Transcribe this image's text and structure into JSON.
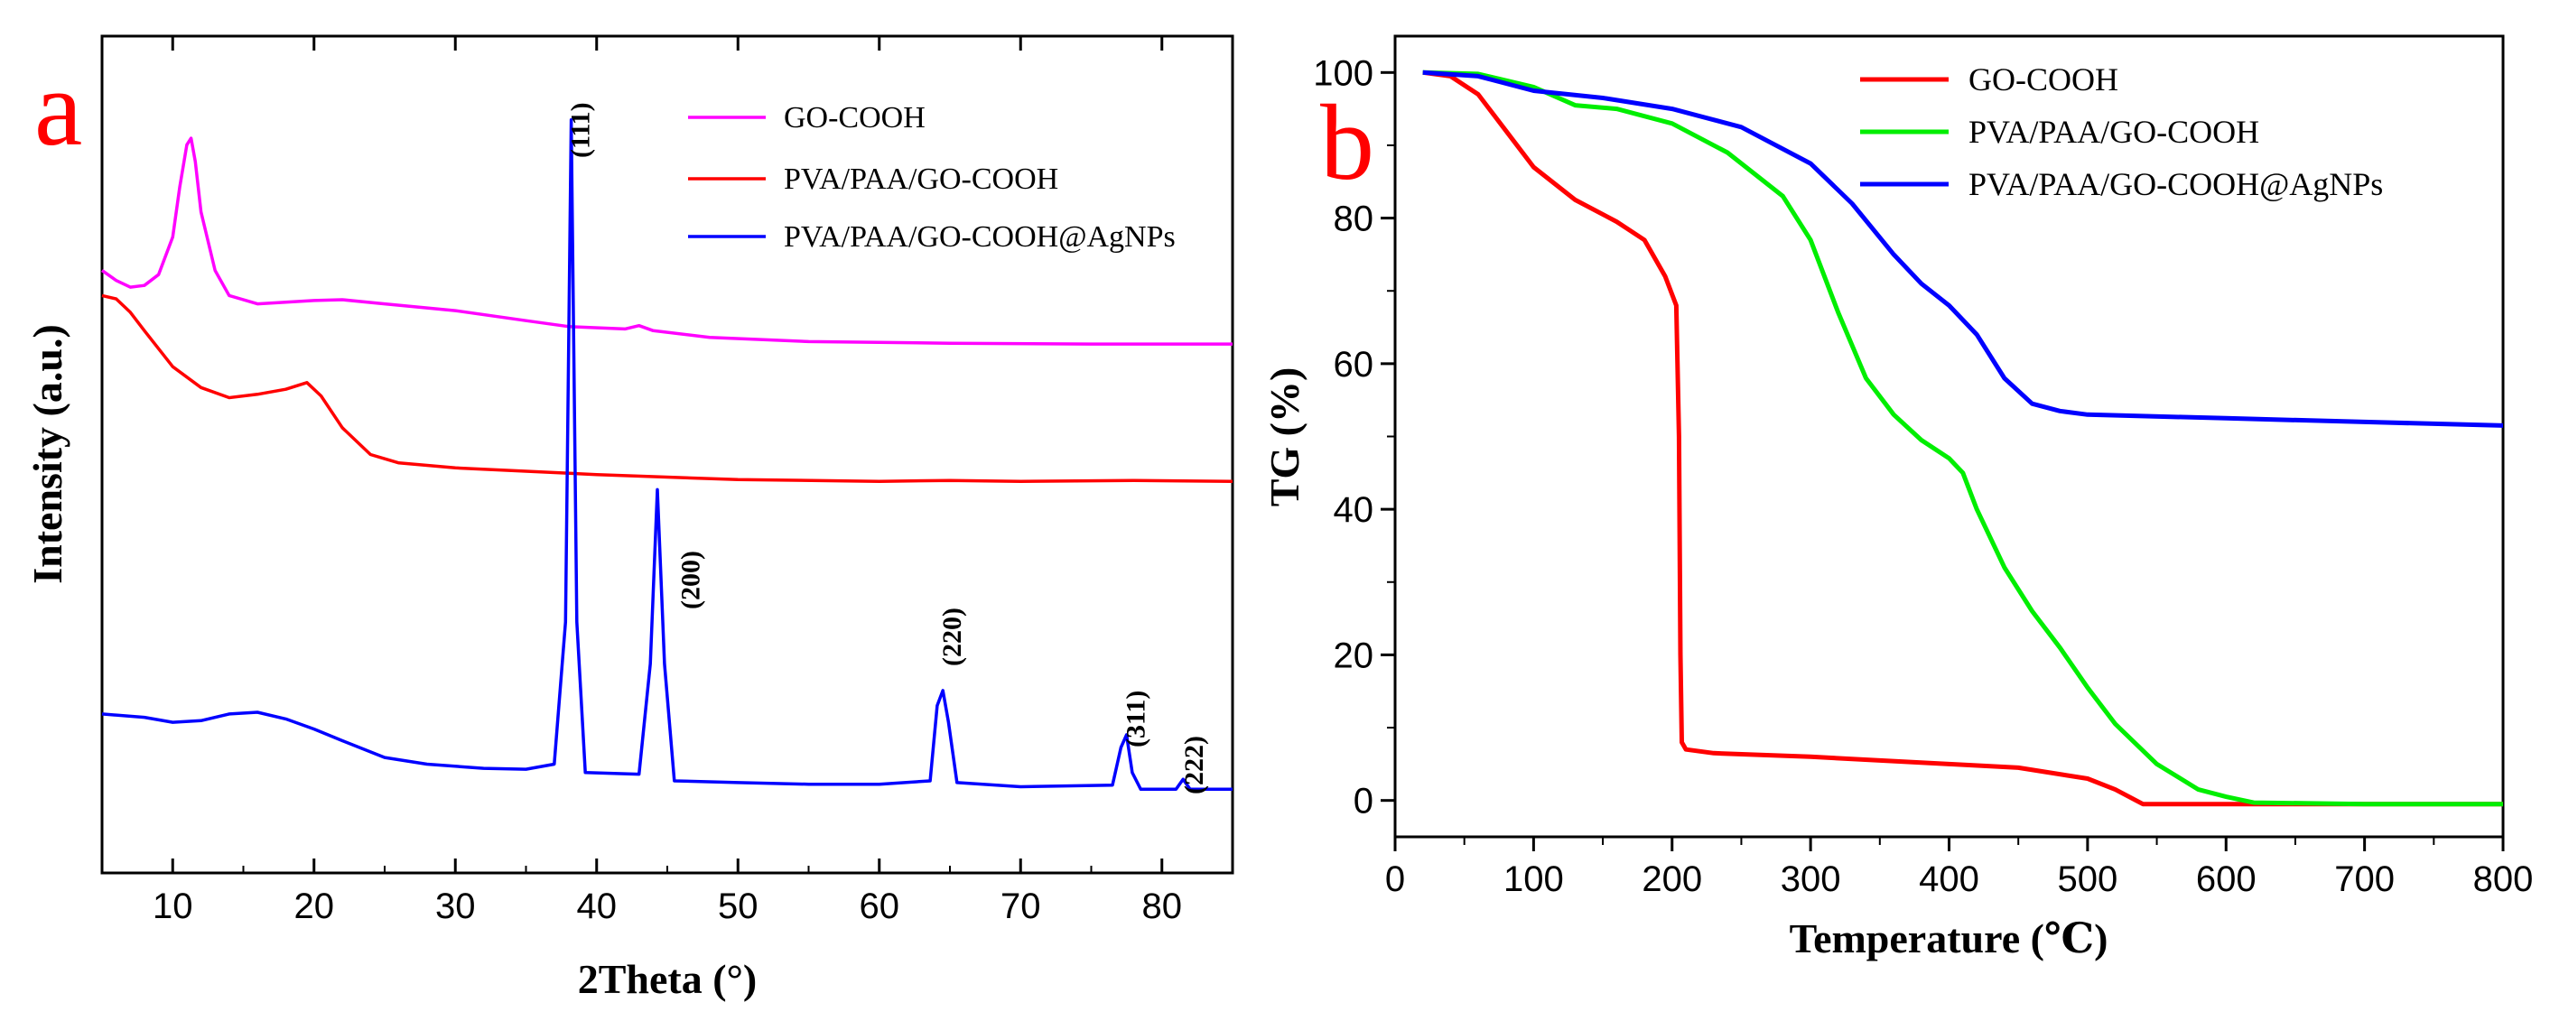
{
  "chart_data": [
    {
      "panel": "a",
      "type": "line",
      "panel_label": "a",
      "xlabel": "2Theta (°)",
      "ylabel": "Intensity (a.u.)",
      "xlim": [
        5,
        85
      ],
      "xticks": [
        10,
        20,
        30,
        40,
        50,
        60,
        70,
        80
      ],
      "yticks": [],
      "legend_position": "top-right",
      "series": [
        {
          "name": "GO-COOH",
          "color": "#ff00ff",
          "points": [
            [
              5,
              0.72
            ],
            [
              6,
              0.708
            ],
            [
              7,
              0.7
            ],
            [
              8,
              0.702
            ],
            [
              9,
              0.715
            ],
            [
              10,
              0.76
            ],
            [
              10.5,
              0.82
            ],
            [
              11,
              0.87
            ],
            [
              11.3,
              0.878
            ],
            [
              11.6,
              0.85
            ],
            [
              12,
              0.79
            ],
            [
              13,
              0.72
            ],
            [
              14,
              0.69
            ],
            [
              16,
              0.68
            ],
            [
              18,
              0.682
            ],
            [
              20,
              0.684
            ],
            [
              22,
              0.685
            ],
            [
              25,
              0.68
            ],
            [
              30,
              0.672
            ],
            [
              35,
              0.66
            ],
            [
              38,
              0.653
            ],
            [
              42,
              0.65
            ],
            [
              43,
              0.654
            ],
            [
              44,
              0.648
            ],
            [
              48,
              0.64
            ],
            [
              55,
              0.635
            ],
            [
              65,
              0.633
            ],
            [
              75,
              0.632
            ],
            [
              85,
              0.632
            ]
          ]
        },
        {
          "name": "PVA/PAA/GO-COOH",
          "color": "#ff0000",
          "points": [
            [
              5,
              0.69
            ],
            [
              6,
              0.686
            ],
            [
              7,
              0.67
            ],
            [
              8,
              0.648
            ],
            [
              10,
              0.605
            ],
            [
              12,
              0.58
            ],
            [
              14,
              0.568
            ],
            [
              16,
              0.572
            ],
            [
              18,
              0.578
            ],
            [
              19.5,
              0.586
            ],
            [
              20.5,
              0.57
            ],
            [
              22,
              0.532
            ],
            [
              24,
              0.5
            ],
            [
              26,
              0.49
            ],
            [
              30,
              0.484
            ],
            [
              35,
              0.48
            ],
            [
              40,
              0.476
            ],
            [
              50,
              0.47
            ],
            [
              60,
              0.468
            ],
            [
              65,
              0.469
            ],
            [
              70,
              0.468
            ],
            [
              78,
              0.469
            ],
            [
              85,
              0.468
            ]
          ]
        },
        {
          "name": "PVA/PAA/GO-COOH@AgNPs",
          "color": "#0000ff",
          "points": [
            [
              5,
              0.19
            ],
            [
              8,
              0.186
            ],
            [
              10,
              0.18
            ],
            [
              12,
              0.182
            ],
            [
              14,
              0.19
            ],
            [
              16,
              0.192
            ],
            [
              18,
              0.184
            ],
            [
              20,
              0.172
            ],
            [
              22,
              0.158
            ],
            [
              25,
              0.138
            ],
            [
              28,
              0.13
            ],
            [
              32,
              0.125
            ],
            [
              35,
              0.124
            ],
            [
              37,
              0.13
            ],
            [
              37.8,
              0.3
            ],
            [
              38.2,
              0.9
            ],
            [
              38.6,
              0.3
            ],
            [
              39.2,
              0.12
            ],
            [
              43,
              0.118
            ],
            [
              43.8,
              0.25
            ],
            [
              44.3,
              0.458
            ],
            [
              44.8,
              0.25
            ],
            [
              45.5,
              0.11
            ],
            [
              50,
              0.108
            ],
            [
              55,
              0.106
            ],
            [
              60,
              0.106
            ],
            [
              63.6,
              0.11
            ],
            [
              64.1,
              0.2
            ],
            [
              64.5,
              0.218
            ],
            [
              64.9,
              0.18
            ],
            [
              65.5,
              0.108
            ],
            [
              70,
              0.103
            ],
            [
              76.5,
              0.105
            ],
            [
              77.1,
              0.15
            ],
            [
              77.5,
              0.165
            ],
            [
              77.9,
              0.12
            ],
            [
              78.5,
              0.1
            ],
            [
              81,
              0.1
            ],
            [
              81.5,
              0.112
            ],
            [
              82,
              0.1
            ],
            [
              85,
              0.1
            ]
          ]
        }
      ],
      "annotations": [
        {
          "text": "(111)",
          "x": 38.2
        },
        {
          "text": "(200)",
          "x": 44.4
        },
        {
          "text": "(220)",
          "x": 64.5
        },
        {
          "text": "(311)",
          "x": 77.5
        },
        {
          "text": "(222)",
          "x": 81.6
        }
      ]
    },
    {
      "panel": "b",
      "type": "line",
      "panel_label": "b",
      "xlabel": "Temperature (℃)",
      "ylabel": "TG (%)",
      "xlim": [
        0,
        800
      ],
      "ylim": [
        -5,
        105
      ],
      "xticks": [
        0,
        100,
        200,
        300,
        400,
        500,
        600,
        700,
        800
      ],
      "yticks": [
        0,
        20,
        40,
        60,
        80,
        100
      ],
      "legend_position": "top-right",
      "series": [
        {
          "name": "GO-COOH",
          "color": "#ff0000",
          "points": [
            [
              20,
              100
            ],
            [
              40,
              99.5
            ],
            [
              60,
              97
            ],
            [
              80,
              92
            ],
            [
              100,
              87
            ],
            [
              130,
              82.5
            ],
            [
              160,
              79.5
            ],
            [
              180,
              77
            ],
            [
              195,
              72
            ],
            [
              203,
              68
            ],
            [
              205,
              50
            ],
            [
              206,
              20
            ],
            [
              207,
              8
            ],
            [
              210,
              7
            ],
            [
              230,
              6.5
            ],
            [
              300,
              6
            ],
            [
              400,
              5
            ],
            [
              450,
              4.5
            ],
            [
              500,
              3
            ],
            [
              520,
              1.5
            ],
            [
              540,
              -0.5
            ],
            [
              600,
              -0.5
            ],
            [
              700,
              -0.5
            ],
            [
              800,
              -0.5
            ]
          ]
        },
        {
          "name": "PVA/PAA/GO-COOH",
          "color": "#00ee00",
          "points": [
            [
              20,
              100
            ],
            [
              60,
              99.8
            ],
            [
              100,
              98
            ],
            [
              130,
              95.5
            ],
            [
              160,
              95
            ],
            [
              200,
              93
            ],
            [
              240,
              89
            ],
            [
              280,
              83
            ],
            [
              300,
              77
            ],
            [
              320,
              67
            ],
            [
              340,
              58
            ],
            [
              360,
              53
            ],
            [
              380,
              49.5
            ],
            [
              400,
              47
            ],
            [
              410,
              45
            ],
            [
              420,
              40
            ],
            [
              440,
              32
            ],
            [
              460,
              26
            ],
            [
              480,
              21
            ],
            [
              500,
              15.5
            ],
            [
              520,
              10.5
            ],
            [
              550,
              5
            ],
            [
              580,
              1.5
            ],
            [
              600,
              0.5
            ],
            [
              620,
              -0.3
            ],
            [
              700,
              -0.5
            ],
            [
              800,
              -0.5
            ]
          ]
        },
        {
          "name": "PVA/PAA/GO-COOH@AgNPs",
          "color": "#0000ff",
          "points": [
            [
              20,
              100
            ],
            [
              60,
              99.5
            ],
            [
              100,
              97.5
            ],
            [
              150,
              96.5
            ],
            [
              200,
              95
            ],
            [
              250,
              92.5
            ],
            [
              300,
              87.5
            ],
            [
              330,
              82
            ],
            [
              360,
              75
            ],
            [
              380,
              71
            ],
            [
              400,
              68
            ],
            [
              420,
              64
            ],
            [
              440,
              58
            ],
            [
              460,
              54.5
            ],
            [
              480,
              53.5
            ],
            [
              500,
              53
            ],
            [
              600,
              52.5
            ],
            [
              700,
              52
            ],
            [
              800,
              51.5
            ]
          ]
        }
      ]
    }
  ]
}
